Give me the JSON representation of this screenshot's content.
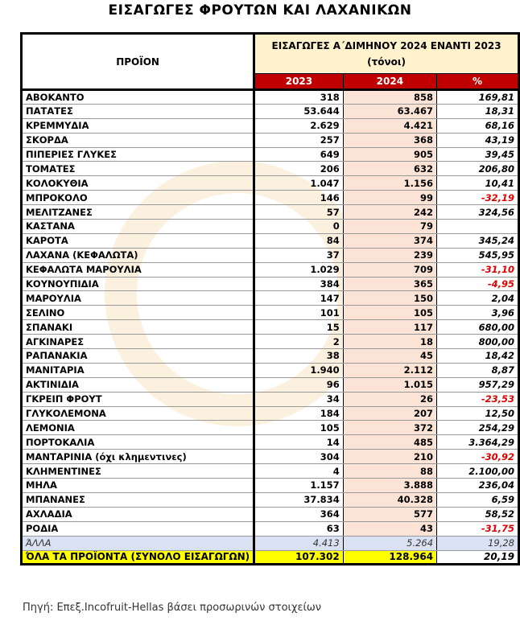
{
  "title": "ΕΙΣΑΓΩΓΕΣ ΦΡΟΥΤΩΝ ΚΑΙ ΛΑΧΑΝΙΚΩΝ",
  "header": {
    "product": "ΠΡΟΪΟΝ",
    "group": "ΕΙΣΑΓΩΓΕΣ Α΄ΔΙΜΗΝΟΥ 2024 ΕΝΑΝΤΙ 2023",
    "unit": "(τόνοι)",
    "col2023": "2023",
    "col2024": "2024",
    "colpct": "%"
  },
  "rows": [
    [
      "ΑΒΟΚΑΝΤΟ",
      "318",
      "858",
      "169,81"
    ],
    [
      "ΠΑΤΑΤΕΣ",
      "53.644",
      "63.467",
      "18,31"
    ],
    [
      "ΚΡΕΜΜΥΔΙΑ",
      "2.629",
      "4.421",
      "68,16"
    ],
    [
      "ΣΚΟΡΔΑ",
      "257",
      "368",
      "43,19"
    ],
    [
      "ΠΙΠΕΡΙΕΣ ΓΛΥΚΕΣ",
      "649",
      "905",
      "39,45"
    ],
    [
      "ΤΟΜΑΤΕΣ",
      "206",
      "632",
      "206,80"
    ],
    [
      "ΚΟΛΟΚΥΘΙΑ",
      "1.047",
      "1.156",
      "10,41"
    ],
    [
      "ΜΠΡΟΚΟΛΟ",
      "146",
      "99",
      "-32,19"
    ],
    [
      "ΜΕΛΙΤΖΑΝΕΣ",
      "57",
      "242",
      "324,56"
    ],
    [
      "ΚΑΣΤΑΝΑ",
      "0",
      "79",
      ""
    ],
    [
      "ΚΑΡΟΤΑ",
      "84",
      "374",
      "345,24"
    ],
    [
      "ΛΑΧΑΝΑ (ΚΕΦΑΛΩΤΑ)",
      "37",
      "239",
      "545,95"
    ],
    [
      "ΚΕΦΑΛΩΤΑ ΜΑΡΟΥΛΙΑ",
      "1.029",
      "709",
      "-31,10"
    ],
    [
      "ΚΟΥΝΟΥΠΙΔΙΑ",
      "384",
      "365",
      "-4,95"
    ],
    [
      "ΜΑΡΟΥΛΙΑ",
      "147",
      "150",
      "2,04"
    ],
    [
      "ΣΕΛΙΝΟ",
      "101",
      "105",
      "3,96"
    ],
    [
      "ΣΠΑΝΑΚΙ",
      "15",
      "117",
      "680,00"
    ],
    [
      "ΑΓΚΙΝΑΡΕΣ",
      "2",
      "18",
      "800,00"
    ],
    [
      "ΡΑΠΑΝΑΚΙΑ",
      "38",
      "45",
      "18,42"
    ],
    [
      "ΜΑΝΙΤΑΡΙΑ",
      "1.940",
      "2.112",
      "8,87"
    ],
    [
      "ΑΚΤΙΝΙΔΙΑ",
      "96",
      "1.015",
      "957,29"
    ],
    [
      "ΓΚΡΕΙΠ ΦΡΟΥΤ",
      "34",
      "26",
      "-23,53"
    ],
    [
      "ΓΛΥΚΟΛΕΜΟΝΑ",
      "184",
      "207",
      "12,50"
    ],
    [
      "ΛΕΜΟΝΙΑ",
      "105",
      "372",
      "254,29"
    ],
    [
      "ΠΟΡΤΟΚΑΛΙΑ",
      "14",
      "485",
      "3.364,29"
    ],
    [
      "ΜΑΝΤΑΡΙΝΙΑ (όχι κλημεντινες)",
      "304",
      "210",
      "-30,92"
    ],
    [
      "ΚΛΗΜΕΝΤΙΝΕΣ",
      "4",
      "88",
      "2.100,00"
    ],
    [
      "ΜΗΛΑ",
      "1.157",
      "3.888",
      "236,04"
    ],
    [
      "ΜΠΑΝΑΝΕΣ",
      "37.834",
      "40.328",
      "6,59"
    ],
    [
      "ΑΧΛΑΔΙΑ",
      "364",
      "577",
      "58,52"
    ],
    [
      "ΡΟΔΙΑ",
      "63",
      "43",
      "-31,75"
    ]
  ],
  "other": [
    "ΆΛΛΑ",
    "4.413",
    "5.264",
    "19,28"
  ],
  "total": [
    "ΌΛΑ ΤΑ ΠΡΟΪΟΝΤΑ (ΣΥΝΟΛΟ ΕΙΣΑΓΩΓΩΝ)",
    "107.302",
    "128.964",
    "20,19"
  ],
  "source": "Πηγή: Επεξ.Incofruit-Hellas βάσει προσωρινών στοιχείων",
  "colors": {
    "header_bg": "#fff2cc",
    "year_bg": "#c00000",
    "col2024_bg": "#fbe3d6",
    "other_bg": "#d9e1f2",
    "total_bg": "#ffff00",
    "negative": "#e00000"
  }
}
